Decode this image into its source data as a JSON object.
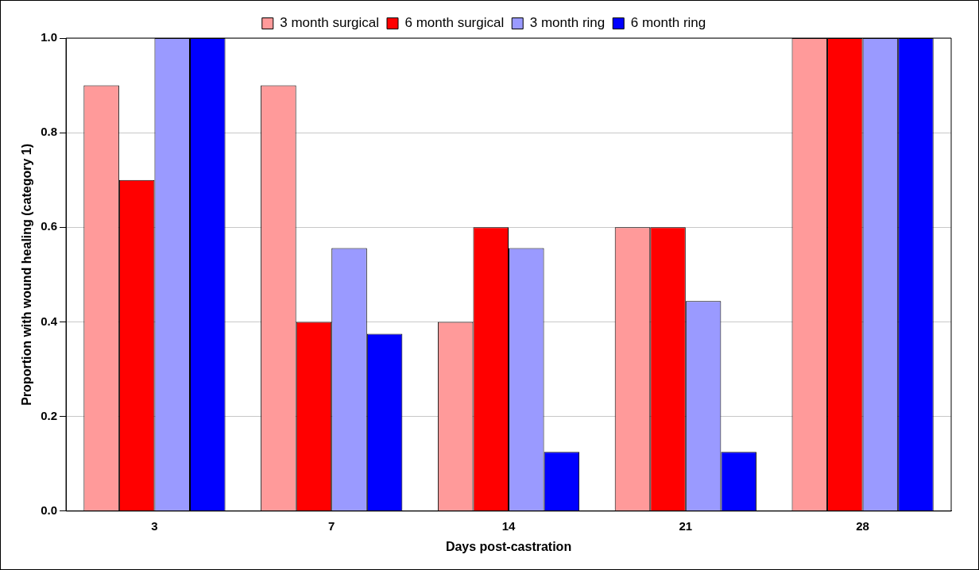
{
  "chart_data": {
    "type": "bar",
    "xlabel": "Days post-castration",
    "ylabel": "Proportion with wound healing (category 1)",
    "categories": [
      "3",
      "7",
      "14",
      "21",
      "28"
    ],
    "series": [
      {
        "name": "3 month surgical",
        "color": "#ff9a9a",
        "values": [
          0.9,
          0.9,
          0.4,
          0.6,
          1.0
        ]
      },
      {
        "name": "6 month surgical",
        "color": "#ff0000",
        "values": [
          0.7,
          0.4,
          0.6,
          0.6,
          1.0
        ]
      },
      {
        "name": "3 month ring",
        "color": "#9a9aff",
        "values": [
          1.0,
          0.556,
          0.556,
          0.444,
          1.0
        ]
      },
      {
        "name": "6 month ring",
        "color": "#0000ff",
        "values": [
          1.0,
          0.375,
          0.125,
          0.125,
          1.0
        ]
      }
    ],
    "ylim": [
      0,
      1
    ],
    "yticks": [
      {
        "value": 0,
        "label": "0.0"
      },
      {
        "value": 0.2,
        "label": "0.2"
      },
      {
        "value": 0.4,
        "label": "0.4"
      },
      {
        "value": 0.6,
        "label": "0.6"
      },
      {
        "value": 0.8,
        "label": "0.8"
      },
      {
        "value": 1,
        "label": "1.0"
      }
    ],
    "grid": "y",
    "legend": "top"
  }
}
